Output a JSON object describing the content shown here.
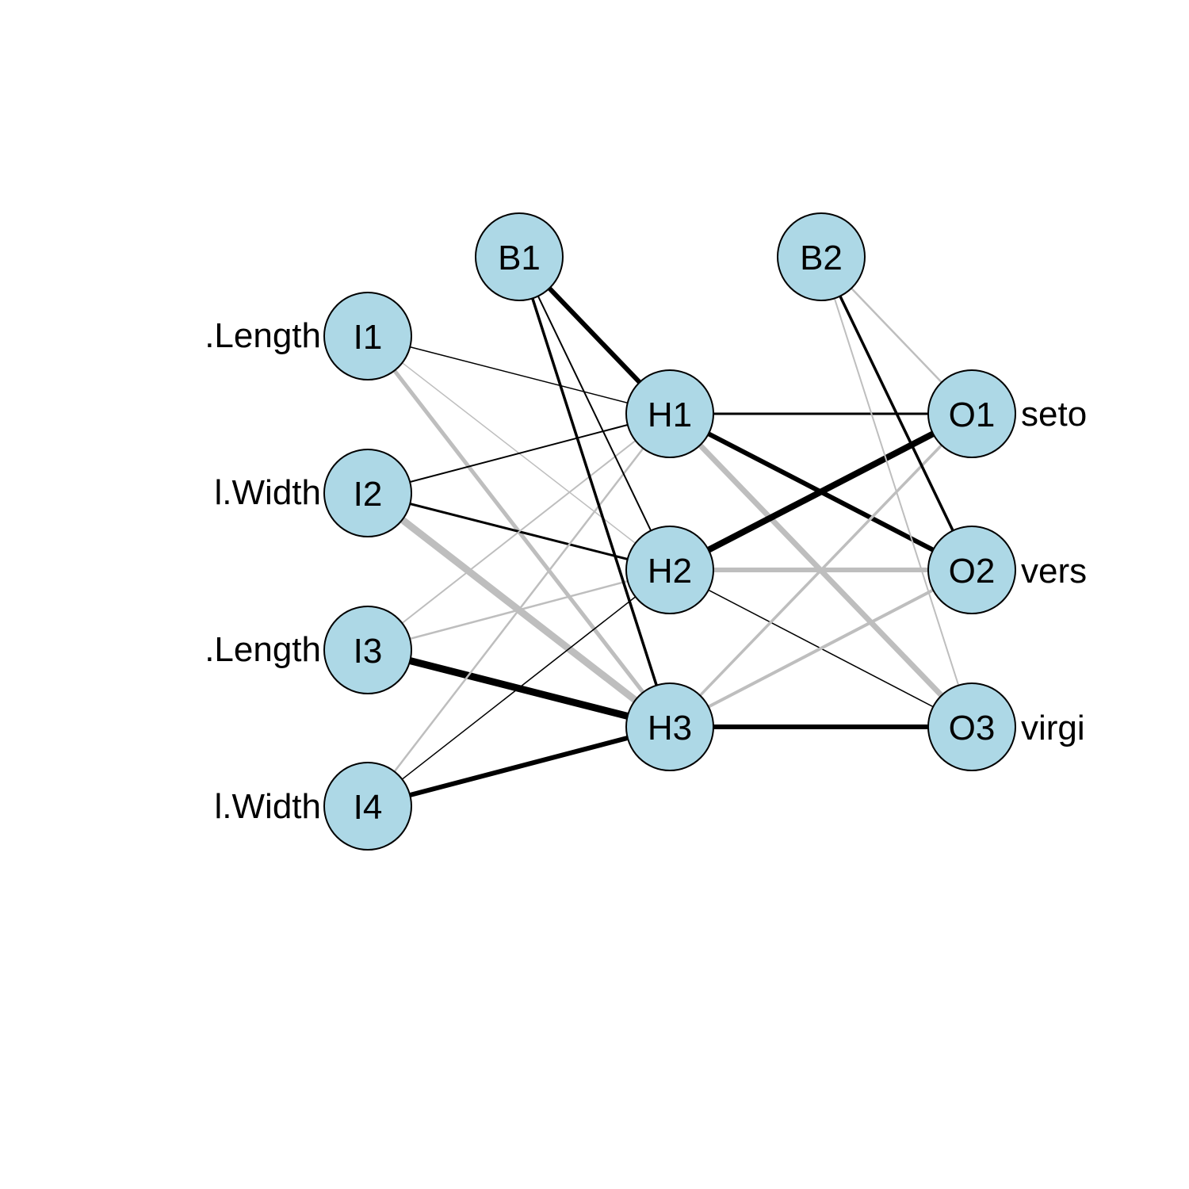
{
  "colors": {
    "node_fill": "#add8e6",
    "node_stroke": "#000000",
    "positive_edge": "#000000",
    "negative_edge": "#bebebe",
    "background": "#ffffff"
  },
  "nodes": [
    {
      "id": "I1",
      "label": "I1",
      "layer": "input"
    },
    {
      "id": "I2",
      "label": "I2",
      "layer": "input"
    },
    {
      "id": "I3",
      "label": "I3",
      "layer": "input"
    },
    {
      "id": "I4",
      "label": "I4",
      "layer": "input"
    },
    {
      "id": "B1",
      "label": "B1",
      "layer": "bias1"
    },
    {
      "id": "H1",
      "label": "H1",
      "layer": "hidden"
    },
    {
      "id": "H2",
      "label": "H2",
      "layer": "hidden"
    },
    {
      "id": "H3",
      "label": "H3",
      "layer": "hidden"
    },
    {
      "id": "B2",
      "label": "B2",
      "layer": "bias2"
    },
    {
      "id": "O1",
      "label": "O1",
      "layer": "output"
    },
    {
      "id": "O2",
      "label": "O2",
      "layer": "output"
    },
    {
      "id": "O3",
      "label": "O3",
      "layer": "output"
    }
  ],
  "input_labels": [
    ".Length",
    "l.Width",
    ".Length",
    "l.Width"
  ],
  "output_labels": [
    "seto",
    "vers",
    "virgi"
  ],
  "edges": [
    {
      "from": "I1",
      "to": "H1",
      "sign": "positive",
      "weight": 1.5
    },
    {
      "from": "I1",
      "to": "H2",
      "sign": "negative",
      "weight": 1.5
    },
    {
      "from": "I1",
      "to": "H3",
      "sign": "negative",
      "weight": 5
    },
    {
      "from": "I2",
      "to": "H1",
      "sign": "positive",
      "weight": 2
    },
    {
      "from": "I2",
      "to": "H2",
      "sign": "positive",
      "weight": 3
    },
    {
      "from": "I2",
      "to": "H3",
      "sign": "negative",
      "weight": 9
    },
    {
      "from": "I3",
      "to": "H1",
      "sign": "negative",
      "weight": 2
    },
    {
      "from": "I3",
      "to": "H2",
      "sign": "negative",
      "weight": 2.5
    },
    {
      "from": "I3",
      "to": "H3",
      "sign": "positive",
      "weight": 9
    },
    {
      "from": "I4",
      "to": "H1",
      "sign": "negative",
      "weight": 2.5
    },
    {
      "from": "I4",
      "to": "H2",
      "sign": "positive",
      "weight": 1.5
    },
    {
      "from": "I4",
      "to": "H3",
      "sign": "positive",
      "weight": 6
    },
    {
      "from": "B1",
      "to": "H1",
      "sign": "positive",
      "weight": 6
    },
    {
      "from": "B1",
      "to": "H2",
      "sign": "positive",
      "weight": 2
    },
    {
      "from": "B1",
      "to": "H3",
      "sign": "positive",
      "weight": 3.5
    },
    {
      "from": "H1",
      "to": "O1",
      "sign": "positive",
      "weight": 3
    },
    {
      "from": "H1",
      "to": "O2",
      "sign": "positive",
      "weight": 6
    },
    {
      "from": "H1",
      "to": "O3",
      "sign": "negative",
      "weight": 7
    },
    {
      "from": "H2",
      "to": "O1",
      "sign": "positive",
      "weight": 8
    },
    {
      "from": "H2",
      "to": "O2",
      "sign": "negative",
      "weight": 6
    },
    {
      "from": "H2",
      "to": "O3",
      "sign": "positive",
      "weight": 1.5
    },
    {
      "from": "H3",
      "to": "O1",
      "sign": "negative",
      "weight": 3.5
    },
    {
      "from": "H3",
      "to": "O2",
      "sign": "negative",
      "weight": 4
    },
    {
      "from": "H3",
      "to": "O3",
      "sign": "positive",
      "weight": 6
    },
    {
      "from": "B2",
      "to": "O1",
      "sign": "negative",
      "weight": 2.5
    },
    {
      "from": "B2",
      "to": "O2",
      "sign": "positive",
      "weight": 3.5
    },
    {
      "from": "B2",
      "to": "O3",
      "sign": "negative",
      "weight": 2
    }
  ]
}
